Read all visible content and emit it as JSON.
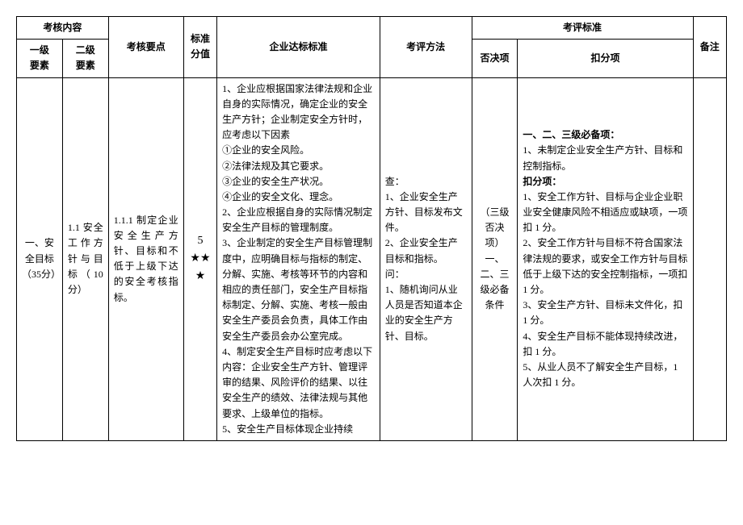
{
  "header": {
    "assessContent": "考核内容",
    "level1": "一级\n要素",
    "level2": "二级\n要素",
    "keyPoints": "考核要点",
    "scoreStd": "标准\n分值",
    "enterpriseStd": "企业达标标准",
    "evalMethod": "考评方法",
    "evalStd": "考评标准",
    "veto": "否决项",
    "deduct": "扣分项",
    "remark": "备注"
  },
  "row": {
    "level1": "一、安全目标（35分）",
    "level2": "1.1 安全工作方针与目标（10 分）",
    "point": "1.1.1 制定企业安全生产方针、目标和不低于上级下达的安全考核指标。",
    "score": "5\n★★\n★",
    "enterpriseStd": "1、企业应根据国家法律法规和企业自身的实际情况，确定企业的安全生产方针；企业制定安全方针时，应考虑以下因素\n①企业的安全风险。\n②法律法规及其它要求。\n③企业的安全生产状况。\n④企业的安全文化、理念。\n2、企业应根据自身的实际情况制定安全生产目标的管理制度。\n3、企业制定的安全生产目标管理制度中，应明确目标与指标的制定、分解、实施、考核等环节的内容和相应的责任部门，安全生产目标指标制定、分解、实施、考核一般由安全生产委员会负责，具体工作由安全生产委员会办公室完成。\n4、制定安全生产目标时应考虑以下内容：企业安全生产方针、管理评审的结果、风险评价的结果、以往安全生产的绩效、法律法规与其他要求、上级单位的指标。\n5、安全生产目标体现企业持续",
    "evalMethod": "查：\n1、企业安全生产方针、目标发布文件。\n2、企业安全生产目标和指标。\n问：\n1、随机询问从业人员是否知道本企业的安全生产方针、目标。",
    "veto": "（三级否决项）\n一、二、三级必备条件",
    "deductTitle1": "一、二、三级必备项：",
    "deductBody1": "1、未制定企业安全生产方针、目标和控制指标。",
    "deductTitle2": "扣分项：",
    "deductBody2": "1、安全工作方针、目标与企业企业职业安全健康风险不相适应或缺项，一项扣 1 分。\n2、安全工作方针与目标不符合国家法律法规的要求，或安全工作方针与目标低于上级下达的安全控制指标，一项扣 1 分。\n3、安全生产方针、目标未文件化，扣 1 分。\n4、安全生产目标不能体现持续改进，扣 1 分。\n5、从业人员不了解安全生产目标，1 人次扣 1 分。",
    "remark": ""
  }
}
